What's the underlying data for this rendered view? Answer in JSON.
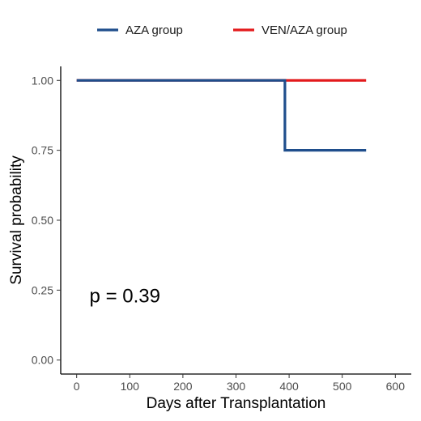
{
  "chart_data": {
    "type": "line",
    "subtype": "step",
    "title": "",
    "xlabel": "Days after Transplantation",
    "ylabel": "Survival probability",
    "xlim": [
      -30,
      630
    ],
    "ylim": [
      -0.05,
      1.05
    ],
    "xticks": [
      0,
      100,
      200,
      300,
      400,
      500,
      600
    ],
    "yticks": [
      0.0,
      0.25,
      0.5,
      0.75,
      1.0
    ],
    "ytick_labels": [
      "0.00",
      "0.25",
      "0.50",
      "0.75",
      "1.00"
    ],
    "grid": false,
    "legend_position": "top",
    "series": [
      {
        "name": "AZA group",
        "color": "#1f4e8c",
        "x": [
          0,
          392,
          392,
          545
        ],
        "y": [
          1.0,
          1.0,
          0.75,
          0.75
        ]
      },
      {
        "name": "VEN/AZA group",
        "color": "#e31a1c",
        "x": [
          0,
          545
        ],
        "y": [
          1.0,
          1.0
        ]
      }
    ],
    "annotations": [
      {
        "text": "p = 0.39",
        "x": 12,
        "y": 0.195
      }
    ]
  }
}
